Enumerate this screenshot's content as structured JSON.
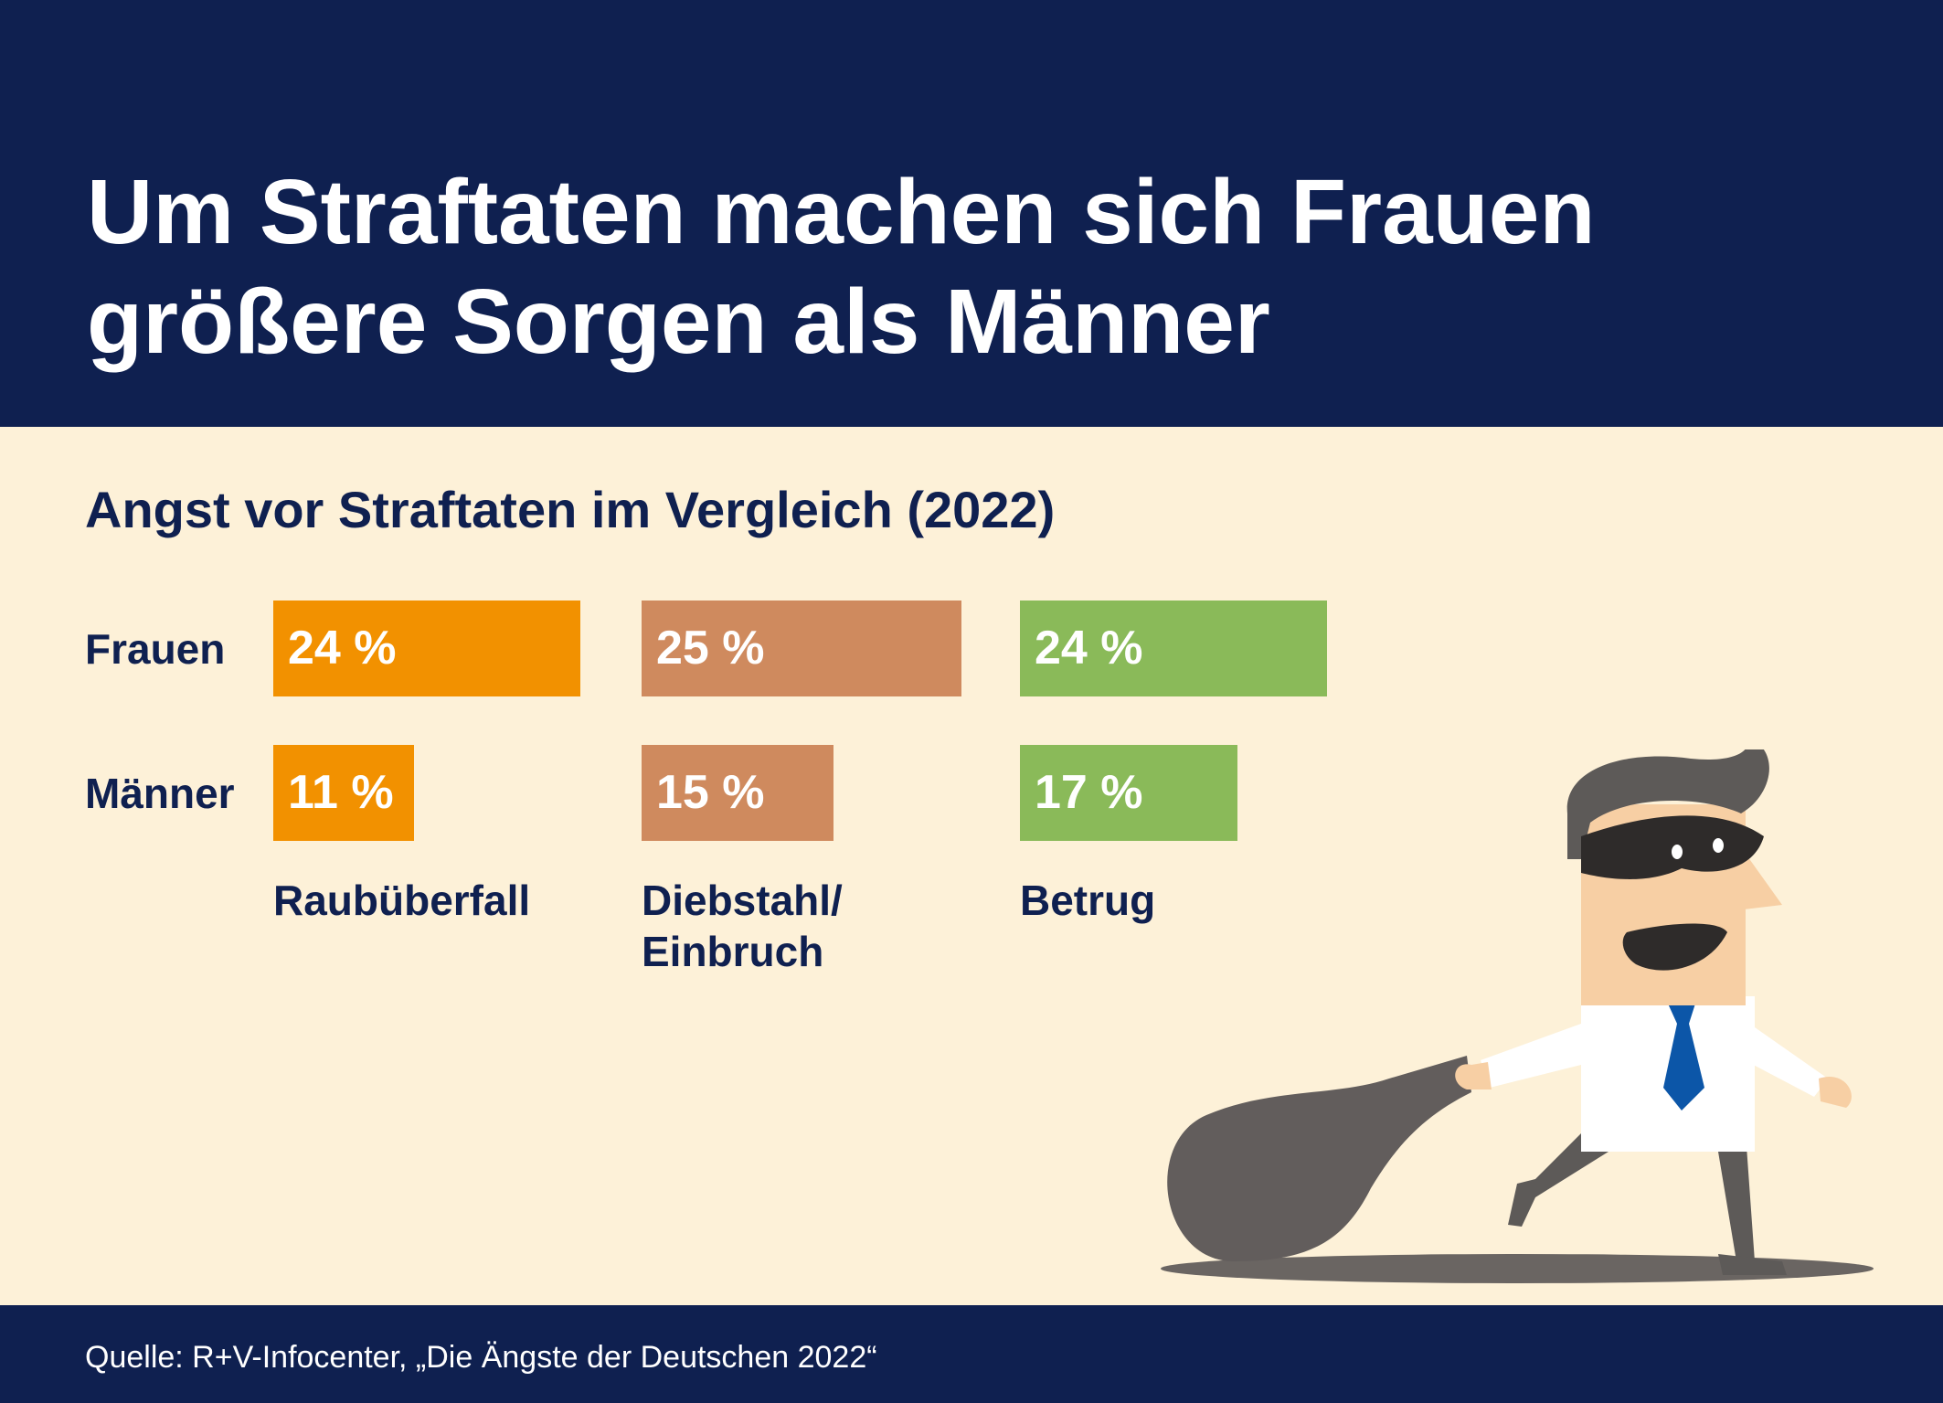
{
  "header": {
    "title": "Um Straftaten machen sich Frauen\ngrößere Sorgen als Männer"
  },
  "chart_data": {
    "type": "bar",
    "subtitle": "Angst vor Straftaten im Vergleich (2022)",
    "rows": [
      "Frauen",
      "Männer"
    ],
    "categories": [
      "Raubüberfall",
      "Diebstahl/\nEinbruch",
      "Betrug"
    ],
    "unit": "%",
    "series": [
      {
        "name": "Frauen",
        "values": [
          24,
          25,
          24
        ]
      },
      {
        "name": "Männer",
        "values": [
          11,
          15,
          17
        ]
      }
    ],
    "value_labels": {
      "Frauen": [
        "24 %",
        "25 %",
        "24 %"
      ],
      "Männer": [
        "11 %",
        "15 %",
        "17 %"
      ]
    },
    "colors": [
      "#f29100",
      "#cf8a5e",
      "#8aba59"
    ],
    "legend": "none",
    "grid": false
  },
  "footer": {
    "source": "Quelle: R+V-Infocenter, „Die Ängste der Deutschen 2022“"
  },
  "illustration": {
    "icon": "thief-with-sack-icon",
    "colors": {
      "hair": "#5d5a58",
      "skin": "#f7cfa4",
      "mask": "#2e2b2a",
      "shirt": "#ffffff",
      "tie": "#0c56a8",
      "sack": "#625d5c",
      "shadow": "#625d5c"
    }
  }
}
